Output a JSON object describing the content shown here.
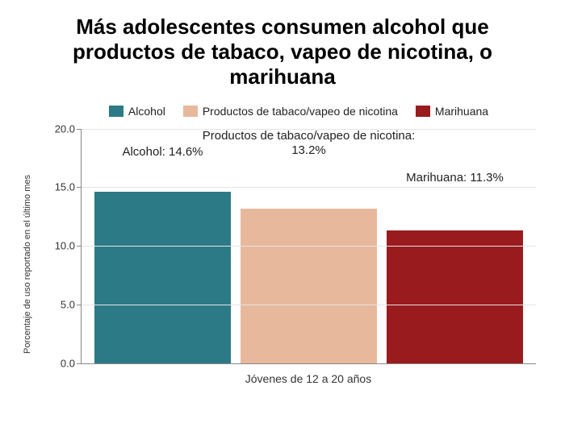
{
  "title": "Más adolescentes consumen alcohol que productos de tabaco, vapeo de nicotina, o marihuana",
  "title_fontsize": 26,
  "chart": {
    "type": "bar",
    "yaxis_label": "Porcentaje de uso reportado en el último mes",
    "xaxis_label": "Jóvenes de 12 a 20 años",
    "ylim_min": 0,
    "ylim_max": 20,
    "ytick_step": 5,
    "tick_decimals": 1,
    "background_color": "#ffffff",
    "grid_color": "#e4e4e4",
    "axis_color": "#888888",
    "series": [
      {
        "name": "Alcohol",
        "value": 14.6,
        "color": "#2c7a86",
        "data_label": "Alcohol: 14.6%",
        "data_label_top_pct": 7
      },
      {
        "name": "Productos de tabaco/vapeo de nicotina",
        "value": 13.2,
        "color": "#e8b89c",
        "data_label": "Productos de tabaco/vapeo de nicotina: 13.2%",
        "data_label_top_pct": 0
      },
      {
        "name": "Marihuana",
        "value": 11.3,
        "color": "#9a1b1e",
        "data_label": "Marihuana: 11.3%",
        "data_label_top_pct": 18
      }
    ]
  }
}
